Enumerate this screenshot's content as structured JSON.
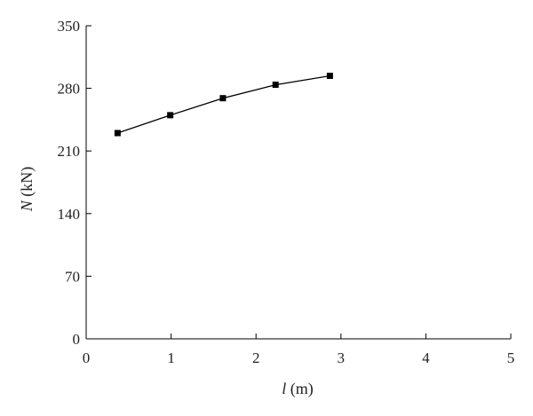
{
  "chart_data": {
    "type": "line",
    "title": "",
    "xlabel": {
      "symbol": "l",
      "unit": " (m)"
    },
    "ylabel": {
      "symbol": "N",
      "unit": " (kN)"
    },
    "xlim": [
      0,
      5
    ],
    "ylim": [
      0,
      350
    ],
    "xticks": [
      0,
      1,
      2,
      3,
      4,
      5
    ],
    "yticks": [
      0,
      70,
      140,
      210,
      280,
      350
    ],
    "grid": false,
    "legend": "none",
    "series": [
      {
        "marker": "square",
        "color": "#000000",
        "x": [
          0.37,
          0.99,
          1.61,
          2.23,
          2.87
        ],
        "y": [
          230,
          250,
          269,
          284,
          294
        ]
      }
    ]
  }
}
